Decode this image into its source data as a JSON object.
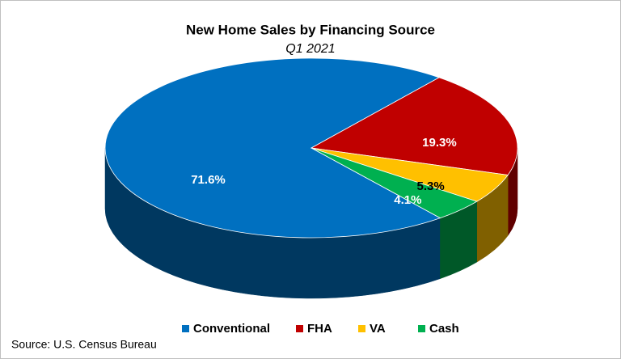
{
  "chart_data": {
    "type": "pie3d",
    "title": "New Home Sales by Financing Source",
    "subtitle": "Q1 2021",
    "categories": [
      "Conventional",
      "FHA",
      "VA",
      "Cash"
    ],
    "values": [
      71.6,
      19.3,
      5.3,
      4.1
    ],
    "value_labels": [
      "71.6%",
      "19.3%",
      "5.3%",
      "4.1%"
    ],
    "colors": [
      "#0070c0",
      "#c00000",
      "#ffc000",
      "#00b050"
    ],
    "legend": "bottom",
    "source": "Source: U.S. Census Bureau"
  }
}
